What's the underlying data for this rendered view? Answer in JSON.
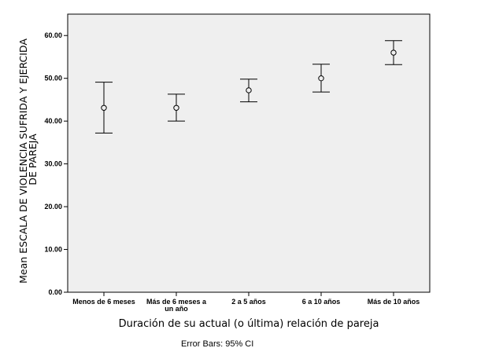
{
  "chart_data": {
    "type": "errorbar",
    "categories": [
      "Menos de 6 meses",
      "Más de 6 meses a un año",
      "2 a 5 años",
      "6 a 10 años",
      "Más de 10 años"
    ],
    "category_lines": [
      [
        "Menos de 6 meses"
      ],
      [
        "Más de 6 meses a",
        "un año"
      ],
      [
        "2 a 5 años"
      ],
      [
        "6 a 10 años"
      ],
      [
        "Más de 10 años"
      ]
    ],
    "series": [
      {
        "means": [
          43.1,
          43.1,
          47.2,
          50.0,
          56.0
        ],
        "lower": [
          37.2,
          40.0,
          44.5,
          46.8,
          53.2
        ],
        "upper": [
          49.1,
          46.3,
          49.8,
          53.3,
          58.8
        ]
      }
    ],
    "ylim": [
      0,
      65
    ],
    "yticks": [
      "0.00",
      "10.00",
      "20.00",
      "30.00",
      "40.00",
      "50.00",
      "60.00"
    ],
    "ytick_values": [
      0,
      10,
      20,
      30,
      40,
      50,
      60
    ],
    "xlabel": "Duración de su actual (o última) relación de pareja",
    "ylabel_lines": [
      "Mean ESCALA DE VIOLENCIA SUFRIDA Y EJERCIDA",
      "DE PAREJA"
    ],
    "note": "Error Bars: 95% CI",
    "grid": false,
    "colors": {
      "plot_bg": "#efefef",
      "frame": "#000000",
      "marks": "#000000"
    }
  }
}
